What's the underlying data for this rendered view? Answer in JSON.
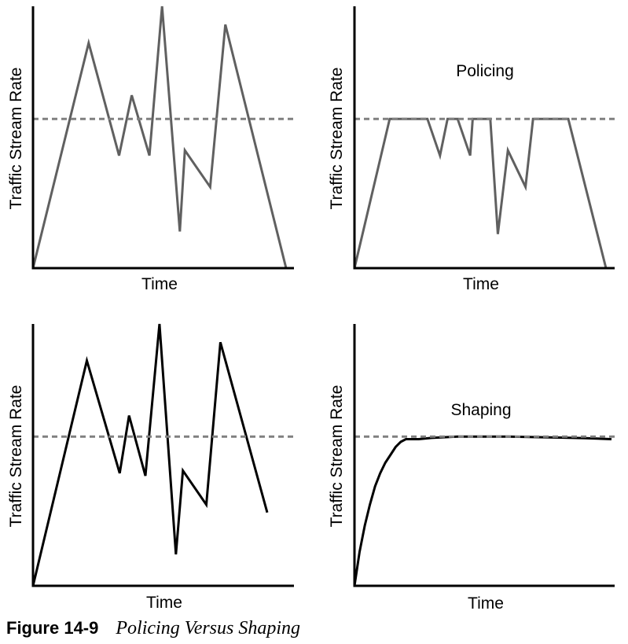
{
  "chart_data": [
    {
      "type": "line",
      "title": "",
      "xlabel": "Time",
      "ylabel": "Traffic Stream Rate",
      "xlim": [
        0,
        100
      ],
      "ylim": [
        0,
        100
      ],
      "limit_line": 57,
      "fill": false,
      "line_color": "#606060",
      "fill_color": null,
      "series": [
        {
          "x": [
            0,
            22,
            34,
            39,
            46,
            51,
            58,
            60,
            70,
            76,
            100
          ],
          "y": [
            0,
            86,
            43,
            66,
            43,
            100,
            14,
            45,
            31,
            93,
            0
          ]
        }
      ]
    },
    {
      "type": "area",
      "title": "Policing",
      "xlabel": "Time",
      "ylabel": "Traffic Stream Rate",
      "xlim": [
        0,
        100
      ],
      "ylim": [
        0,
        100
      ],
      "limit_line": 57,
      "fill": true,
      "line_color": "#606060",
      "fill_color": "#b0b0b0",
      "series": [
        {
          "x": [
            0,
            14,
            29,
            34,
            37,
            41,
            46,
            47,
            54,
            57,
            61,
            68,
            71,
            85,
            100
          ],
          "y": [
            0,
            57,
            57,
            43,
            57,
            57,
            43,
            57,
            57,
            13,
            45,
            31,
            57,
            57,
            0
          ]
        }
      ]
    },
    {
      "type": "line",
      "title": "",
      "xlabel": "Time",
      "ylabel": "Traffic Stream Rate",
      "xlim": [
        0,
        100
      ],
      "ylim": [
        0,
        100
      ],
      "limit_line": 57,
      "fill": false,
      "line_color": "#000000",
      "fill_color": null,
      "series": [
        {
          "x": [
            0,
            23,
            37,
            41,
            48,
            54,
            61,
            64,
            74,
            80,
            100
          ],
          "y": [
            0,
            86,
            43,
            65,
            42,
            100,
            12,
            44,
            31,
            93,
            28
          ]
        }
      ]
    },
    {
      "type": "line",
      "title": "Shaping",
      "xlabel": "Time",
      "ylabel": "Traffic Stream Rate",
      "xlim": [
        0,
        100
      ],
      "ylim": [
        0,
        100
      ],
      "limit_line": 57,
      "fill": false,
      "line_color": "#000000",
      "fill_color": null,
      "series": [
        {
          "x": [
            0,
            2,
            4,
            6,
            8,
            10,
            12,
            14,
            16,
            18,
            20,
            25,
            30,
            40,
            50,
            60,
            70,
            80,
            90,
            100
          ],
          "y": [
            0,
            13,
            23,
            31,
            38,
            43,
            47,
            50,
            53,
            55,
            56,
            56,
            56.5,
            57,
            57,
            57,
            56.8,
            56.6,
            56.4,
            56
          ]
        }
      ]
    }
  ],
  "caption": {
    "number": "Figure 14-9",
    "text": "Policing Versus Shaping"
  }
}
